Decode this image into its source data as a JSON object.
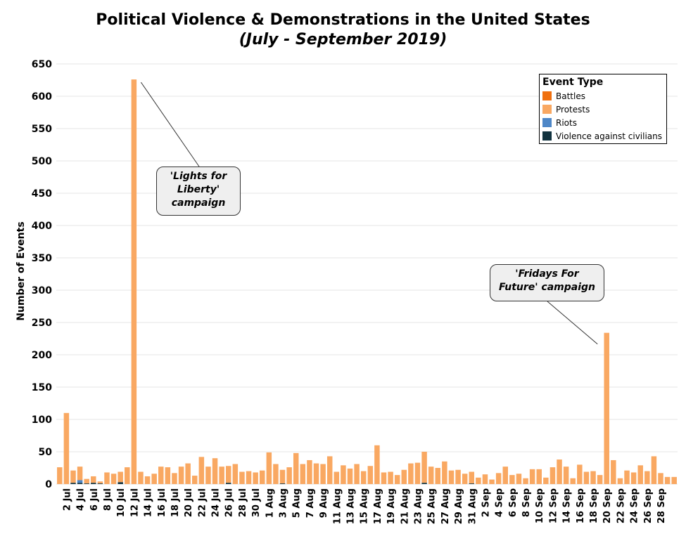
{
  "title": "Political Violence & Demonstrations in the United States",
  "subtitle": "(July - September 2019)",
  "chart_data": {
    "type": "bar",
    "stacked": true,
    "ylabel": "Number of Events",
    "ylim": [
      0,
      650
    ],
    "yticks": [
      0,
      50,
      100,
      150,
      200,
      250,
      300,
      350,
      400,
      450,
      500,
      550,
      600,
      650
    ],
    "grid": true,
    "legend_position": "top-right",
    "legend_title": "Event Type",
    "categories": [
      "1 Jul",
      "2 Jul",
      "3 Jul",
      "4 Jul",
      "5 Jul",
      "6 Jul",
      "7 Jul",
      "8 Jul",
      "9 Jul",
      "10 Jul",
      "11 Jul",
      "12 Jul",
      "13 Jul",
      "14 Jul",
      "15 Jul",
      "16 Jul",
      "17 Jul",
      "18 Jul",
      "19 Jul",
      "20 Jul",
      "21 Jul",
      "22 Jul",
      "23 Jul",
      "24 Jul",
      "25 Jul",
      "26 Jul",
      "27 Jul",
      "28 Jul",
      "29 Jul",
      "30 Jul",
      "31 Jul",
      "1 Aug",
      "2 Aug",
      "3 Aug",
      "4 Aug",
      "5 Aug",
      "6 Aug",
      "7 Aug",
      "8 Aug",
      "9 Aug",
      "10 Aug",
      "11 Aug",
      "12 Aug",
      "13 Aug",
      "14 Aug",
      "15 Aug",
      "16 Aug",
      "17 Aug",
      "18 Aug",
      "19 Aug",
      "20 Aug",
      "21 Aug",
      "22 Aug",
      "23 Aug",
      "24 Aug",
      "25 Aug",
      "26 Aug",
      "27 Aug",
      "28 Aug",
      "29 Aug",
      "30 Aug",
      "31 Aug",
      "1 Sep",
      "2 Sep",
      "3 Sep",
      "4 Sep",
      "5 Sep",
      "6 Sep",
      "7 Sep",
      "8 Sep",
      "9 Sep",
      "10 Sep",
      "11 Sep",
      "12 Sep",
      "13 Sep",
      "14 Sep",
      "15 Sep",
      "16 Sep",
      "17 Sep",
      "18 Sep",
      "19 Sep",
      "20 Sep",
      "21 Sep",
      "22 Sep",
      "23 Sep",
      "24 Sep",
      "25 Sep",
      "26 Sep",
      "27 Sep",
      "28 Sep",
      "29 Sep",
      "30 Sep"
    ],
    "xtick_labels": [
      "2 Jul",
      "4 Jul",
      "6 Jul",
      "8 Jul",
      "10 Jul",
      "12 Jul",
      "14 Jul",
      "16 Jul",
      "18 Jul",
      "20 Jul",
      "22 Jul",
      "24 Jul",
      "26 Jul",
      "28 Jul",
      "30 Jul",
      "1 Aug",
      "3 Aug",
      "5 Aug",
      "7 Aug",
      "9 Aug",
      "11 Aug",
      "13 Aug",
      "15 Aug",
      "17 Aug",
      "19 Aug",
      "21 Aug",
      "23 Aug",
      "25 Aug",
      "27 Aug",
      "29 Aug",
      "31 Aug",
      "2 Sep",
      "4 Sep",
      "6 Sep",
      "8 Sep",
      "10 Sep",
      "12 Sep",
      "14 Sep",
      "16 Sep",
      "18 Sep",
      "20 Sep",
      "22 Sep",
      "24 Sep",
      "26 Sep",
      "28 Sep"
    ],
    "series": [
      {
        "name": "Battles",
        "color": "#f0700f",
        "values": [
          0,
          0,
          0,
          0,
          0,
          0,
          0,
          0,
          0,
          0,
          0,
          0,
          0,
          0,
          0,
          0,
          0,
          0,
          0,
          0,
          0,
          0,
          0,
          0,
          0,
          0,
          0,
          0,
          0,
          0,
          0,
          0,
          0,
          0,
          0,
          0,
          0,
          0,
          0,
          0,
          0,
          0,
          0,
          0,
          0,
          0,
          0,
          0,
          0,
          0,
          0,
          0,
          0,
          0,
          0,
          0,
          0,
          0,
          0,
          0,
          0,
          0,
          0,
          0,
          0,
          0,
          0,
          0,
          0,
          0,
          0,
          0,
          0,
          0,
          0,
          0,
          0,
          0,
          0,
          0,
          0,
          0,
          0,
          0,
          0,
          0,
          0,
          0,
          0,
          0,
          0,
          0
        ]
      },
      {
        "name": "Protests",
        "color": "#f9a862",
        "values": [
          26,
          110,
          19,
          21,
          7,
          10,
          3,
          18,
          16,
          16,
          26,
          626,
          19,
          12,
          16,
          27,
          26,
          17,
          27,
          32,
          13,
          42,
          27,
          40,
          27,
          26,
          31,
          19,
          20,
          18,
          21,
          49,
          31,
          21,
          26,
          48,
          31,
          37,
          32,
          31,
          43,
          19,
          29,
          24,
          31,
          20,
          28,
          60,
          18,
          19,
          14,
          22,
          32,
          33,
          48,
          27,
          25,
          35,
          21,
          22,
          16,
          18,
          10,
          15,
          7,
          17,
          27,
          14,
          16,
          9,
          23,
          23,
          10,
          26,
          38,
          27,
          9,
          30,
          19,
          20,
          14,
          234,
          37,
          9,
          21,
          18,
          29,
          20,
          43,
          17,
          11,
          11
        ]
      },
      {
        "name": "Riots",
        "color": "#4e87c7",
        "values": [
          0,
          0,
          0,
          4,
          0,
          0,
          0,
          0,
          0,
          0,
          0,
          0,
          0,
          0,
          0,
          0,
          0,
          0,
          0,
          0,
          0,
          0,
          0,
          0,
          0,
          0,
          0,
          0,
          0,
          0,
          0,
          0,
          0,
          0,
          0,
          0,
          0,
          0,
          0,
          0,
          0,
          0,
          0,
          0,
          0,
          0,
          0,
          0,
          0,
          0,
          0,
          0,
          0,
          0,
          0,
          0,
          0,
          0,
          0,
          0,
          0,
          0,
          0,
          0,
          0,
          0,
          0,
          0,
          0,
          0,
          0,
          0,
          0,
          0,
          0,
          0,
          0,
          0,
          0,
          0,
          0,
          0,
          0,
          0,
          0,
          0,
          0,
          0,
          0,
          0,
          0,
          0
        ]
      },
      {
        "name": "Violence against civilians",
        "color": "#12333f",
        "values": [
          0,
          0,
          2,
          2,
          1,
          2,
          1,
          0,
          0,
          3,
          0,
          0,
          0,
          0,
          0,
          0,
          0,
          0,
          0,
          0,
          0,
          0,
          0,
          0,
          0,
          2,
          0,
          0,
          0,
          0,
          0,
          0,
          0,
          1,
          0,
          0,
          0,
          0,
          0,
          0,
          0,
          0,
          0,
          0,
          0,
          0,
          0,
          0,
          0,
          0,
          0,
          0,
          0,
          0,
          2,
          0,
          0,
          0,
          0,
          0,
          0,
          1,
          0,
          0,
          0,
          0,
          0,
          0,
          0,
          0,
          0,
          0,
          0,
          0,
          0,
          0,
          0,
          0,
          0,
          0,
          0,
          0,
          0,
          0,
          0,
          0,
          0,
          0,
          0,
          0,
          0,
          0
        ]
      }
    ],
    "annotations": [
      {
        "text": "'Lights for\nLiberty'\ncampaign",
        "target": "12 Jul"
      },
      {
        "text": "'Fridays For\nFuture' campaign",
        "target": "20 Sep"
      }
    ]
  }
}
